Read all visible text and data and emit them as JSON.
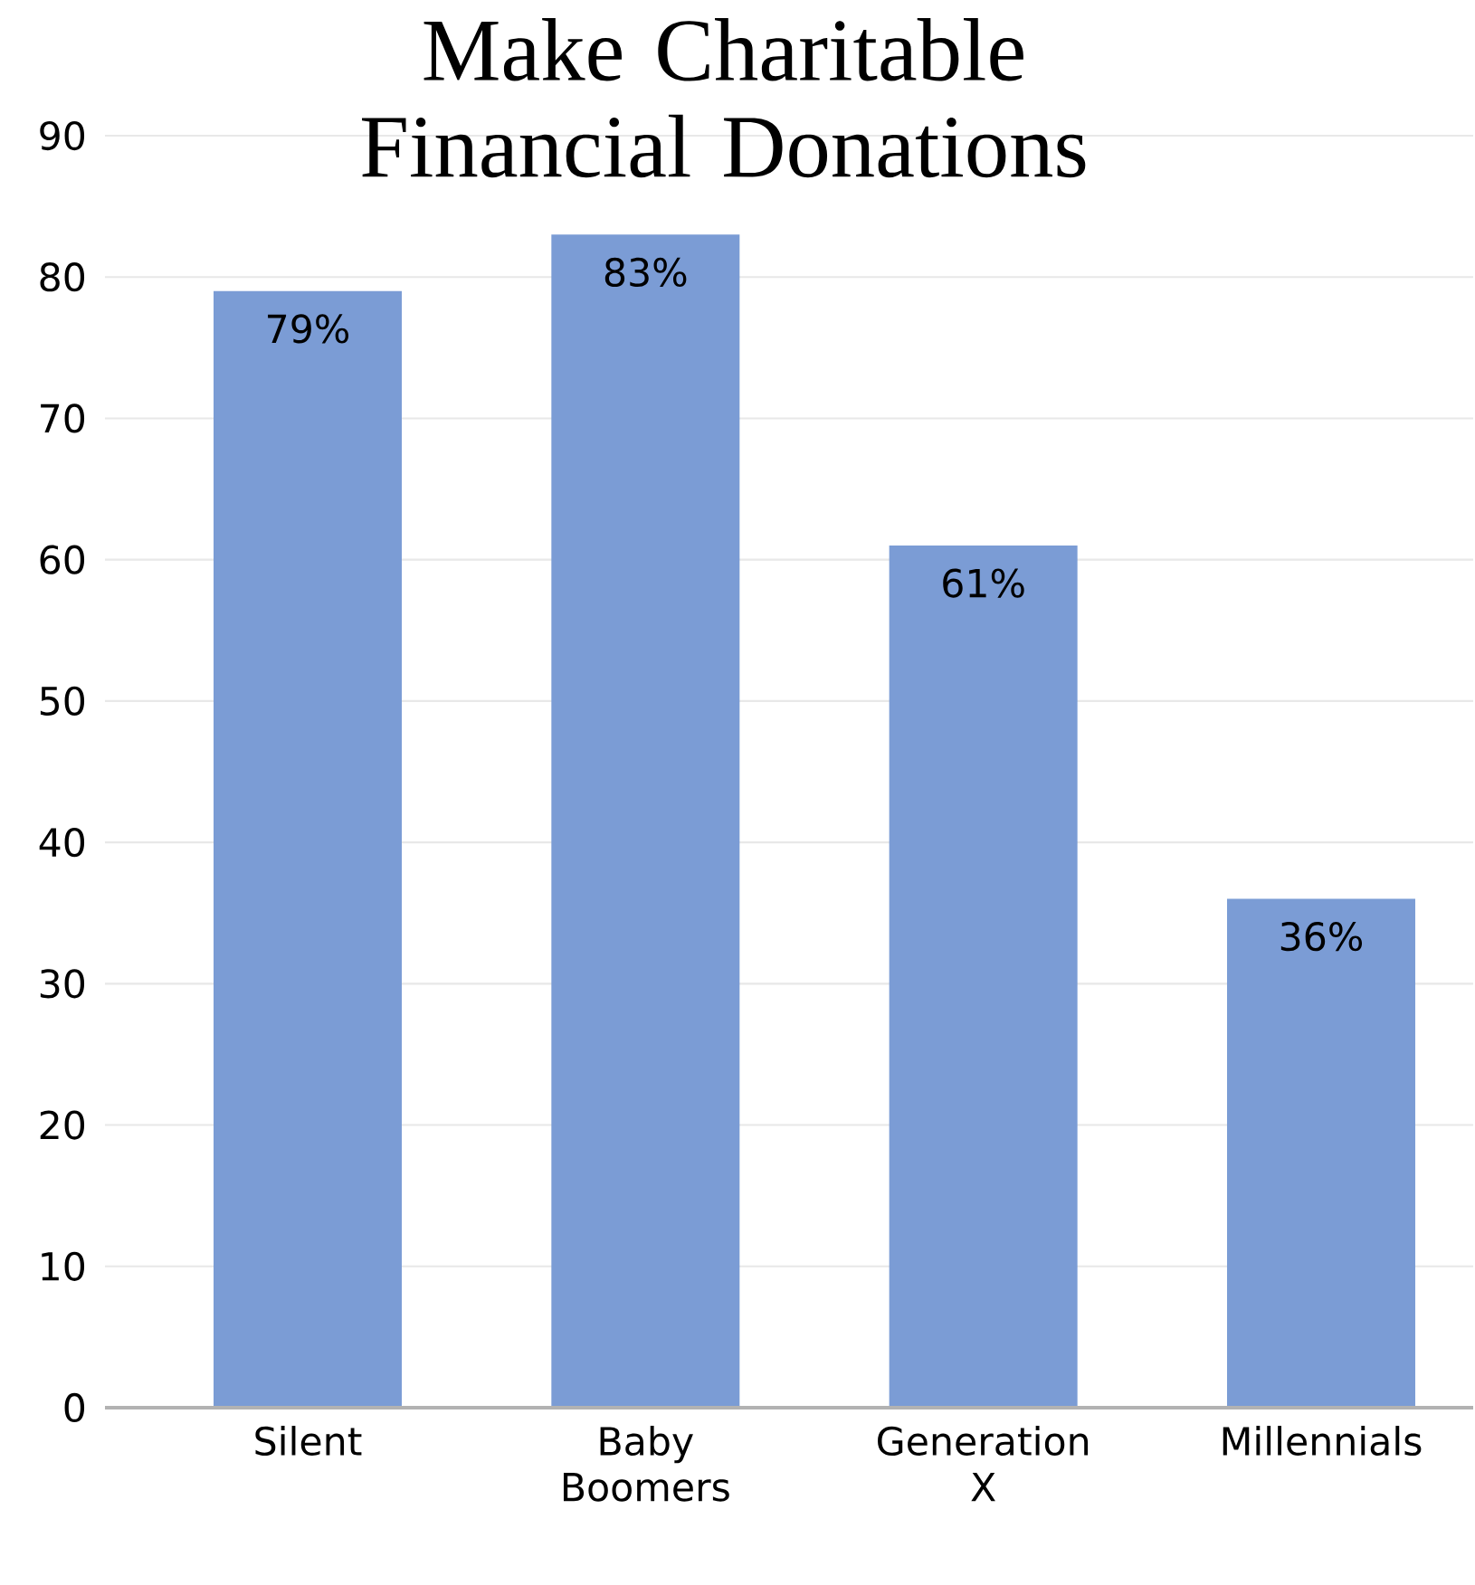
{
  "chart_data": {
    "type": "bar",
    "title": "Make Charitable Financial Donations",
    "categories": [
      "Silent",
      "Baby Boomers",
      "Generation X",
      "Millennials"
    ],
    "values": [
      79,
      83,
      61,
      36
    ],
    "value_labels": [
      "79%",
      "83%",
      "61%",
      "36%"
    ],
    "color": "#7b9cd5",
    "ylim": [
      0,
      90
    ],
    "yticks": [
      0,
      10,
      20,
      30,
      40,
      50,
      60,
      70,
      80,
      90
    ],
    "grid": "y"
  }
}
